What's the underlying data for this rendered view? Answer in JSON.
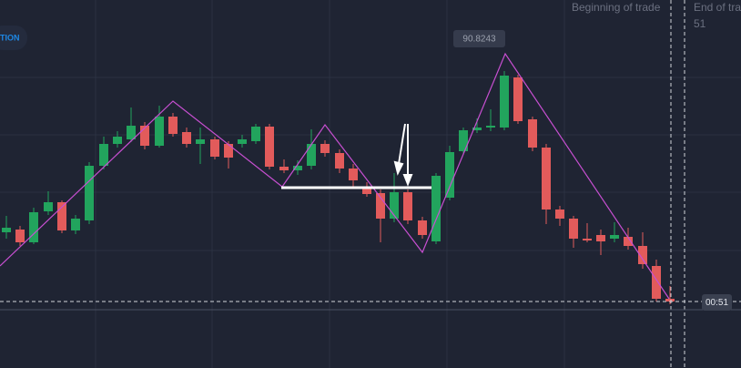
{
  "badge": "TION",
  "trade_labels": {
    "beginning": "Beginning of trade",
    "end": "End of tra",
    "end_time": "51"
  },
  "price_label": "90.8243",
  "timer_label": "00:51"
}
